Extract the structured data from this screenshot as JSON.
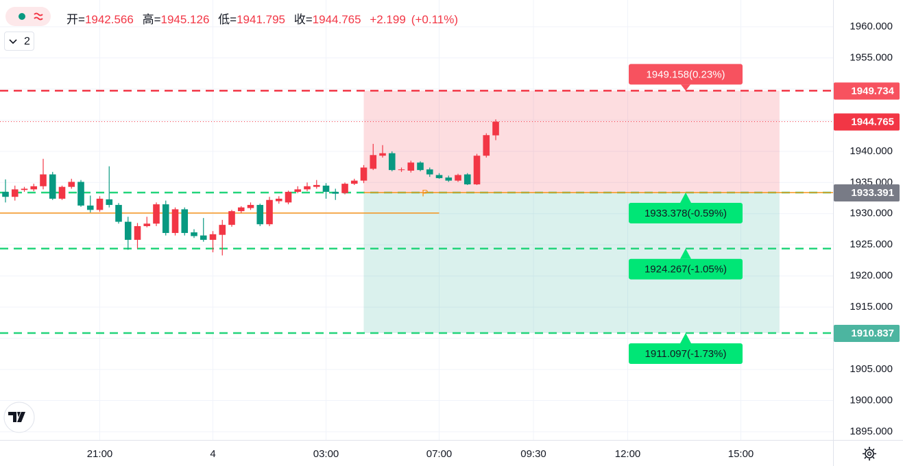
{
  "chart_data": {
    "type": "candlestick",
    "badge": "2",
    "legend": {
      "open_label": "开=",
      "open": "1942.566",
      "high_label": "高=",
      "high": "1945.126",
      "low_label": "低=",
      "low": "1941.795",
      "close_label": "收=",
      "close": "1944.765",
      "change": "+2.199",
      "change_pct": "(+0.11%)"
    },
    "up_color": "#f23645",
    "down_color": "#089981",
    "x": [
      0,
      1,
      2,
      3,
      4,
      5,
      6,
      7,
      8,
      9,
      10,
      11,
      12,
      13,
      14,
      15,
      16,
      17,
      18,
      19,
      20,
      21,
      22,
      23,
      24,
      25,
      26,
      27,
      28,
      29,
      30,
      31,
      32,
      33,
      34,
      35,
      36,
      37,
      38,
      39,
      40,
      41,
      42,
      43,
      44,
      45,
      46,
      47,
      48,
      49,
      50,
      51,
      52
    ],
    "open": [
      1933.5,
      1932.7,
      1933.8,
      1933.9,
      1934.4,
      1936.3,
      1932.4,
      1934.3,
      1935.1,
      1931.3,
      1930.6,
      1932.3,
      1931.4,
      1928.7,
      1925.8,
      1928.0,
      1928.4,
      1931.5,
      1926.9,
      1930.7,
      1927.0,
      1926.5,
      1925.8,
      1926.6,
      1928.2,
      1930.4,
      1930.9,
      1931.4,
      1928.3,
      1932.0,
      1931.8,
      1933.5,
      1933.9,
      1934.3,
      1934.5,
      1933.5,
      1933.3,
      1934.8,
      1935.3,
      1937.2,
      1939.3,
      1939.7,
      1937.0,
      1936.9,
      1938.2,
      1937.1,
      1936.2,
      1935.8,
      1935.3,
      1936.3,
      1934.7,
      1939.3,
      1942.566
    ],
    "high": [
      1935.5,
      1934.5,
      1934.3,
      1934.8,
      1938.8,
      1936.7,
      1934.5,
      1935.6,
      1935.4,
      1932.9,
      1932.8,
      1937.6,
      1931.7,
      1929.5,
      1928.5,
      1929.5,
      1931.8,
      1932.1,
      1931.0,
      1931.0,
      1927.5,
      1929.3,
      1927.2,
      1929.0,
      1930.6,
      1931.2,
      1931.8,
      1931.6,
      1932.7,
      1932.8,
      1933.7,
      1934.4,
      1935.0,
      1935.4,
      1934.9,
      1934.0,
      1935.0,
      1935.6,
      1937.8,
      1941.2,
      1941.0,
      1940.0,
      1937.4,
      1938.5,
      1938.4,
      1937.4,
      1936.5,
      1936.1,
      1936.4,
      1936.5,
      1939.6,
      1942.9,
      1945.126
    ],
    "low": [
      1931.8,
      1932.1,
      1933.5,
      1933.6,
      1933.9,
      1932.2,
      1932.2,
      1934.0,
      1931.1,
      1930.2,
      1930.3,
      1931.0,
      1928.4,
      1924.2,
      1924.4,
      1927.8,
      1928.0,
      1926.5,
      1926.5,
      1926.5,
      1926.1,
      1925.5,
      1923.8,
      1923.3,
      1927.9,
      1930.1,
      1930.6,
      1928.0,
      1928.0,
      1931.6,
      1931.5,
      1933.3,
      1933.6,
      1934.0,
      1932.4,
      1932.2,
      1933.1,
      1934.6,
      1934.9,
      1937.0,
      1939.0,
      1936.8,
      1936.7,
      1936.6,
      1936.8,
      1935.9,
      1935.6,
      1935.1,
      1935.1,
      1934.6,
      1934.6,
      1939.0,
      1941.795
    ],
    "close": [
      1932.7,
      1933.9,
      1934.0,
      1934.4,
      1936.3,
      1932.4,
      1934.3,
      1935.1,
      1931.3,
      1930.6,
      1932.4,
      1931.4,
      1928.7,
      1925.8,
      1928.0,
      1928.4,
      1931.5,
      1926.9,
      1930.7,
      1926.9,
      1926.4,
      1925.8,
      1926.7,
      1928.2,
      1930.4,
      1931.0,
      1931.4,
      1928.3,
      1932.2,
      1932.4,
      1933.5,
      1933.9,
      1934.4,
      1934.6,
      1933.5,
      1933.2,
      1934.8,
      1935.3,
      1937.4,
      1939.4,
      1939.7,
      1937.0,
      1937.1,
      1938.2,
      1937.0,
      1936.3,
      1935.7,
      1935.3,
      1936.2,
      1934.7,
      1939.3,
      1942.6,
      1944.765
    ],
    "xlim": [
      -0.582,
      87.78
    ],
    "xticks": [
      {
        "value": 10,
        "label": "21:00"
      },
      {
        "value": 22,
        "label": "4"
      },
      {
        "value": 34,
        "label": "03:00"
      },
      {
        "value": 46,
        "label": "07:00"
      },
      {
        "value": 56,
        "label": "09:30"
      },
      {
        "value": 66,
        "label": "12:00"
      },
      {
        "value": 78,
        "label": "15:00"
      }
    ],
    "ylim": [
      1893.68,
      1964.29
    ],
    "yticks": [
      {
        "value": 1960,
        "label": "1960.000"
      },
      {
        "value": 1955,
        "label": "1955.000"
      },
      {
        "value": 1950,
        "label": "1950.000"
      },
      {
        "value": 1945,
        "label": "1945.000"
      },
      {
        "value": 1940,
        "label": "1940.000"
      },
      {
        "value": 1935,
        "label": "1935.000"
      },
      {
        "value": 1930,
        "label": "1930.000"
      },
      {
        "value": 1925,
        "label": "1925.000"
      },
      {
        "value": 1920,
        "label": "1920.000"
      },
      {
        "value": 1915,
        "label": "1915.000"
      },
      {
        "value": 1910,
        "label": "1910.000"
      },
      {
        "value": 1905,
        "label": "1905.000"
      },
      {
        "value": 1900,
        "label": "1900.000"
      },
      {
        "value": 1895,
        "label": "1895.000"
      }
    ],
    "grid": true,
    "zones": [
      {
        "from": 1933.391,
        "to": 1949.734,
        "x_range": [
          38,
          82.1
        ],
        "color": "#f23645"
      },
      {
        "from": 1910.837,
        "to": 1933.391,
        "x_range": [
          38,
          82.1
        ],
        "color": "#22ab94"
      }
    ],
    "trend_lines": [
      {
        "value": 1930.1,
        "x_range": [
          -0.582,
          46
        ],
        "color": "#f7931a"
      },
      {
        "value": 1933.391,
        "x_range": [
          38,
          87.78
        ],
        "color": "#f7931a"
      }
    ],
    "position_marker": "P",
    "position_marker_x": 44.5,
    "levels": [
      {
        "value": 1949.734,
        "color": "#f23645",
        "style": "dashed",
        "axis_color": "#f7525f",
        "tag": "1949.158(0.23%)",
        "tag_side": "above"
      },
      {
        "value": 1944.765,
        "color": "#f23645",
        "style": "dotted",
        "axis_color": "#f23645"
      },
      {
        "value": 1933.391,
        "color": "#22d47b",
        "style": "dashed",
        "axis_color": "#787b86",
        "tag": "1933.378(-0.59%)",
        "tag_side": "below"
      },
      {
        "value": 1924.4,
        "color": "#22d47b",
        "style": "dashed",
        "tag": "1924.267(-1.05%)",
        "tag_side": "below"
      },
      {
        "value": 1910.837,
        "color": "#22d47b",
        "style": "dashed",
        "axis_color": "#4cb5a0",
        "tag": "1911.097(-1.73%)",
        "tag_side": "below"
      }
    ]
  }
}
